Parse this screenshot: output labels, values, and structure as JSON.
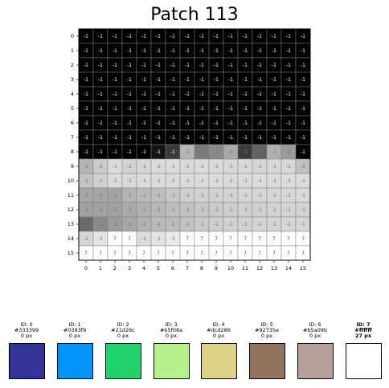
{
  "title": "Patch 113",
  "row_labels": [
    "0",
    "1",
    "2",
    "3",
    "4",
    "5",
    "6",
    "7",
    "8",
    "9",
    "10",
    "11",
    "12",
    "13",
    "14",
    "15"
  ],
  "col_labels": [
    "0",
    "1",
    "2",
    "3",
    "4",
    "5",
    "6",
    "7",
    "8",
    "9",
    "10",
    "11",
    "12",
    "13",
    "14",
    "15"
  ],
  "grid": {
    "rows": [
      {
        "labels": [
          "-1",
          "-1",
          "-1",
          "-1",
          "-1",
          "-1",
          "-1",
          "-1",
          "-1",
          "-1",
          "-1",
          "-1",
          "-1",
          "-1",
          "-1",
          "-1"
        ],
        "shades": [
          "#000000",
          "#000000",
          "#000000",
          "#000000",
          "#000000",
          "#000000",
          "#000000",
          "#000000",
          "#000000",
          "#000000",
          "#000000",
          "#000000",
          "#000000",
          "#000000",
          "#000000",
          "#000000"
        ]
      },
      {
        "labels": [
          "-1",
          "-1",
          "-1",
          "-1",
          "-1",
          "-1",
          "-1",
          "-1",
          "-1",
          "-1",
          "-1",
          "-1",
          "-1",
          "-1",
          "-1",
          "-1"
        ],
        "shades": [
          "#000000",
          "#000000",
          "#000000",
          "#000000",
          "#000000",
          "#000000",
          "#000000",
          "#000000",
          "#000000",
          "#000000",
          "#000000",
          "#000000",
          "#000000",
          "#000000",
          "#000000",
          "#000000"
        ]
      },
      {
        "labels": [
          "-1",
          "-1",
          "-1",
          "-1",
          "-1",
          "-1",
          "-1",
          "-1",
          "-1",
          "-1",
          "-1",
          "-1",
          "-1",
          "-1",
          "-1",
          "-1"
        ],
        "shades": [
          "#000000",
          "#000000",
          "#000000",
          "#000000",
          "#000000",
          "#000000",
          "#000000",
          "#000000",
          "#000000",
          "#000000",
          "#000000",
          "#000000",
          "#000000",
          "#000000",
          "#000000",
          "#000000"
        ]
      },
      {
        "labels": [
          "-1",
          "-1",
          "-1",
          "-1",
          "-1",
          "-1",
          "-1",
          "-1",
          "-1",
          "-1",
          "-1",
          "-1",
          "-1",
          "-1",
          "-1",
          "-1"
        ],
        "shades": [
          "#000000",
          "#000000",
          "#000000",
          "#000000",
          "#000000",
          "#000000",
          "#000000",
          "#000000",
          "#000000",
          "#000000",
          "#000000",
          "#000000",
          "#000000",
          "#000000",
          "#000000",
          "#000000"
        ]
      },
      {
        "labels": [
          "-1",
          "-1",
          "-1",
          "-1",
          "-1",
          "-1",
          "-1",
          "-1",
          "-1",
          "-1",
          "-1",
          "-1",
          "-1",
          "-1",
          "-1",
          "-1"
        ],
        "shades": [
          "#000000",
          "#000000",
          "#000000",
          "#000000",
          "#000000",
          "#000000",
          "#000000",
          "#000000",
          "#000000",
          "#000000",
          "#000000",
          "#000000",
          "#000000",
          "#000000",
          "#000000",
          "#000000"
        ]
      },
      {
        "labels": [
          "-1",
          "-1",
          "-1",
          "-1",
          "-1",
          "-1",
          "-1",
          "-1",
          "-1",
          "-1",
          "-1",
          "-1",
          "-1",
          "-1",
          "-1",
          "-1"
        ],
        "shades": [
          "#000000",
          "#000000",
          "#000000",
          "#000000",
          "#000000",
          "#000000",
          "#000000",
          "#000000",
          "#000000",
          "#000000",
          "#000000",
          "#000000",
          "#000000",
          "#000000",
          "#000000",
          "#000000"
        ]
      },
      {
        "labels": [
          "-1",
          "-1",
          "-1",
          "-1",
          "-1",
          "-1",
          "-1",
          "-1",
          "-1",
          "-1",
          "-1",
          "-1",
          "-1",
          "-1",
          "-1",
          "-1"
        ],
        "shades": [
          "#000000",
          "#000000",
          "#000000",
          "#000000",
          "#000000",
          "#000000",
          "#000000",
          "#000000",
          "#000000",
          "#000000",
          "#000000",
          "#000000",
          "#000000",
          "#000000",
          "#000000",
          "#000000"
        ]
      },
      {
        "labels": [
          "-1",
          "-1",
          "-1",
          "-1",
          "-1",
          "-1",
          "-1",
          "-1",
          "-1",
          "-1",
          "-1",
          "-1",
          "-1",
          "-1",
          "-1",
          "-1"
        ],
        "shades": [
          "#000000",
          "#000000",
          "#000000",
          "#000000",
          "#000000",
          "#000000",
          "#000000",
          "#000000",
          "#000000",
          "#000000",
          "#000000",
          "#000000",
          "#000000",
          "#000000",
          "#000000",
          "#000000"
        ]
      },
      {
        "labels": [
          "-1",
          "-1",
          "-1",
          "-1",
          "-1",
          "-1",
          "-1",
          "-1",
          "-1",
          "-1",
          "-1",
          "-1",
          "-1",
          "-1",
          "-1",
          "-1"
        ],
        "shades": [
          "#000000",
          "#000000",
          "#000000",
          "#000000",
          "#000000",
          "#141414",
          "#3a3a3a",
          "#b5b5b5",
          "#7a7a7a",
          "#8a8a8a",
          "#a8a8a8",
          "#3c3c3c",
          "#626262",
          "#b0b0b0",
          "#9a9a9a",
          "#000000"
        ]
      },
      {
        "labels": [
          "-1",
          "-1",
          "-1",
          "-1",
          "-1",
          "-1",
          "-1",
          "-1",
          "-1",
          "-1",
          "-1",
          "-1",
          "-1",
          "-1",
          "-1",
          "-1"
        ],
        "shades": [
          "#b4b4b4",
          "#cbcbcb",
          "#dcdcdc",
          "#d2d2d2",
          "#d6d6d6",
          "#dadada",
          "#dcdcdc",
          "#dadada",
          "#dcdcdc",
          "#dadada",
          "#d8d8d8",
          "#d8d8d8",
          "#d6d6d6",
          "#d8d8d8",
          "#d8d8d8",
          "#c0c0c0"
        ]
      },
      {
        "labels": [
          "-1",
          "-1",
          "-1",
          "-1",
          "-1",
          "-1",
          "-1",
          "-1",
          "-1",
          "-1",
          "-1",
          "-1",
          "-1",
          "-1",
          "-1",
          "-1"
        ],
        "shades": [
          "#c4c4c4",
          "#d0d0d0",
          "#dcdcdc",
          "#dadada",
          "#dcdcdc",
          "#dcdcdc",
          "#dcdcdc",
          "#dcdcdc",
          "#dcdcdc",
          "#dcdcdc",
          "#dadada",
          "#dcdcdc",
          "#dcdcdc",
          "#dcdcdc",
          "#dcdcdc",
          "#dcdcdc"
        ]
      },
      {
        "labels": [
          "-1",
          "-1",
          "-1",
          "-1",
          "-1",
          "-1",
          "-1",
          "-1",
          "-1",
          "-1",
          "-1",
          "-1",
          "-1",
          "-1",
          "-1",
          "-1"
        ],
        "shades": [
          "#a6a6a6",
          "#a6a6a6",
          "#a4a4a4",
          "#b4b4b4",
          "#bababa",
          "#bebebe",
          "#c8c8c8",
          "#d0d0d0",
          "#d2d2d2",
          "#d2d2d2",
          "#d4d4d4",
          "#d6d6d6",
          "#d6d6d6",
          "#d6d6d6",
          "#d8d8d8",
          "#dadada"
        ]
      },
      {
        "labels": [
          "-1",
          "-1",
          "-1",
          "-1",
          "-1",
          "-1",
          "-1",
          "-1",
          "-1",
          "-1",
          "-1",
          "-1",
          "-1",
          "-1",
          "-1",
          "-1"
        ],
        "shades": [
          "#a0a0a0",
          "#a2a2a2",
          "#a2a2a2",
          "#aaaaaa",
          "#b0b0b0",
          "#b8b8b8",
          "#bebebe",
          "#c2c2c2",
          "#c8c8c8",
          "#cbcbcb",
          "#cecece",
          "#d0d0d0",
          "#d0d0d0",
          "#d2d2d2",
          "#d4d4d4",
          "#d4d4d4"
        ]
      },
      {
        "labels": [
          "-1",
          "-1",
          "-1",
          "-1",
          "-1",
          "-1",
          "-1",
          "-1",
          "-1",
          "-1",
          "-1",
          "-1",
          "-1",
          "-1",
          "-1",
          "-1"
        ],
        "shades": [
          "#6a6a6a",
          "#8a8a8a",
          "#9c9c9c",
          "#a8a8a8",
          "#b2b2b2",
          "#bababa",
          "#bcbcbc",
          "#c2c2c2",
          "#cacaca",
          "#cecece",
          "#d2d2d2",
          "#d2d2d2",
          "#d4d4d4",
          "#d4d4d4",
          "#d6d6d6",
          "#d6d6d6"
        ]
      },
      {
        "labels": [
          "-1",
          "-1",
          "7",
          "7",
          "-1",
          "-1",
          "-1",
          "7",
          "7",
          "7",
          "7",
          "7",
          "7",
          "7",
          "7",
          "7"
        ],
        "shades": [
          "#d6d6d6",
          "#e4e4e4",
          "#ffffff",
          "#ffffff",
          "#dcdcdc",
          "#e4e4e4",
          "#eaeaea",
          "#ffffff",
          "#ffffff",
          "#ffffff",
          "#ffffff",
          "#ffffff",
          "#ffffff",
          "#ffffff",
          "#ffffff",
          "#ffffff"
        ]
      },
      {
        "labels": [
          "7",
          "7",
          "7",
          "7",
          "7",
          "7",
          "7",
          "7",
          "7",
          "7",
          "7",
          "7",
          "7",
          "7",
          "7",
          "7"
        ],
        "shades": [
          "#ffffff",
          "#ffffff",
          "#ffffff",
          "#ffffff",
          "#ffffff",
          "#ffffff",
          "#ffffff",
          "#ffffff",
          "#ffffff",
          "#ffffff",
          "#ffffff",
          "#ffffff",
          "#ffffff",
          "#ffffff",
          "#ffffff",
          "#ffffff"
        ]
      }
    ]
  },
  "legend": [
    {
      "id_label": "ID: 0",
      "hex": "#333399",
      "px": "0 px",
      "color": "#333399",
      "bold": false
    },
    {
      "id_label": "ID: 1",
      "hex": "#0393f9",
      "px": "0 px",
      "color": "#0393f9",
      "bold": false
    },
    {
      "id_label": "ID: 2",
      "hex": "#21d26c",
      "px": "0 px",
      "color": "#21d26c",
      "bold": false
    },
    {
      "id_label": "ID: 3",
      "hex": "#b5f08a",
      "px": "0 px",
      "color": "#b5f08a",
      "bold": false
    },
    {
      "id_label": "ID: 4",
      "hex": "#dcd286",
      "px": "0 px",
      "color": "#dcd286",
      "bold": false
    },
    {
      "id_label": "ID: 5",
      "hex": "#92735e",
      "px": "0 px",
      "color": "#92735e",
      "bold": false
    },
    {
      "id_label": "ID: 6",
      "hex": "#b5a09b",
      "px": "0 px",
      "color": "#b5a09b",
      "bold": false
    },
    {
      "id_label": "ID: 7",
      "hex": "#ffffff",
      "px": "27 px",
      "color": "#ffffff",
      "bold": true
    }
  ]
}
